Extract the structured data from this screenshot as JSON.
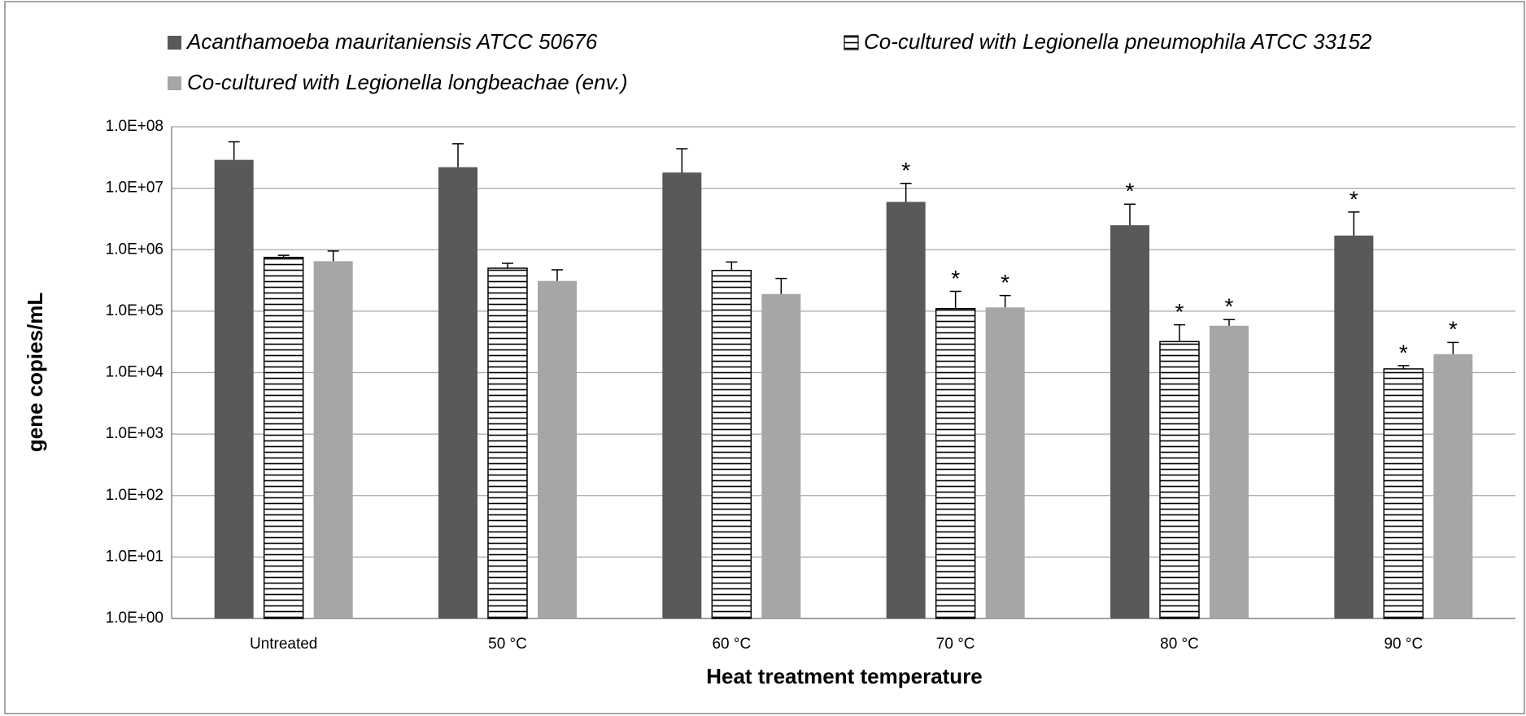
{
  "chart_data": {
    "type": "bar",
    "x_label": "Heat treatment temperature",
    "y_label": "gene copies/mL",
    "categories": [
      "Untreated",
      "50 °C",
      "60 °C",
      "70 °C",
      "80 °C",
      "90 °C"
    ],
    "series": [
      {
        "name": "Acanthamoeba mauritaniensis ATCC 50676",
        "color": "#595959",
        "values": [
          29000000,
          22000000,
          18000000,
          6000000,
          2500000,
          1700000
        ],
        "errors": [
          28000000,
          31000000,
          26000000,
          6000000,
          3000000,
          2400000
        ],
        "annotations": [
          null,
          null,
          null,
          "*",
          "*",
          "*"
        ]
      },
      {
        "name": "Co-cultured with Legionella pneumophila ATCC 33152",
        "color": "#ffffff",
        "hatch": "horizontal",
        "values": [
          750000,
          500000,
          460000,
          110000,
          32000,
          11500
        ],
        "errors": [
          60000,
          100000,
          170000,
          100000,
          28000,
          1500
        ],
        "annotations": [
          null,
          null,
          null,
          "*",
          "*",
          "*"
        ]
      },
      {
        "name": "Co-cultured with Legionella longbeachae (env.)",
        "color": "#a6a6a6",
        "values": [
          650000,
          310000,
          190000,
          115000,
          58000,
          20000
        ],
        "errors": [
          300000,
          160000,
          150000,
          65000,
          15000,
          11000
        ],
        "annotations": [
          null,
          null,
          null,
          "*",
          "*",
          "*"
        ]
      }
    ],
    "log_scale": true,
    "ylim": [
      1,
      100000000
    ],
    "yticks": [
      {
        "value": 1,
        "label": "1.0E+00"
      },
      {
        "value": 10,
        "label": "1.0E+01"
      },
      {
        "value": 100,
        "label": "1.0E+02"
      },
      {
        "value": 1000,
        "label": "1.0E+03"
      },
      {
        "value": 10000,
        "label": "1.0E+04"
      },
      {
        "value": 100000,
        "label": "1.0E+05"
      },
      {
        "value": 1000000,
        "label": "1.0E+06"
      },
      {
        "value": 10000000,
        "label": "1.0E+07"
      },
      {
        "value": 100000000,
        "label": "1.0E+08"
      }
    ],
    "grid": true,
    "legend": "top"
  }
}
